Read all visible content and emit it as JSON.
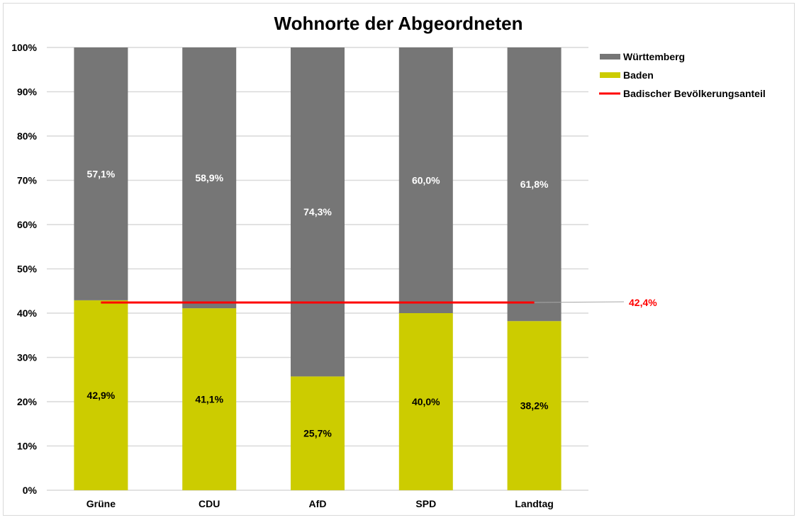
{
  "chart_data": {
    "type": "bar",
    "stacked": true,
    "title": "Wohnorte der Abgeordneten",
    "xlabel": "",
    "ylabel": "",
    "ylim": [
      0,
      100
    ],
    "yticks": [
      "0%",
      "10%",
      "20%",
      "30%",
      "40%",
      "50%",
      "60%",
      "70%",
      "80%",
      "90%",
      "100%"
    ],
    "grid": true,
    "legend_position": "right",
    "categories": [
      "Grüne",
      "CDU",
      "AfD",
      "SPD",
      "Landtag"
    ],
    "series": [
      {
        "name": "Baden",
        "color": "#cccc00",
        "values": [
          42.9,
          41.1,
          25.7,
          40.0,
          38.2
        ],
        "labels": [
          "42,9%",
          "41,1%",
          "25,7%",
          "40,0%",
          "38,2%"
        ],
        "label_color": "#000000"
      },
      {
        "name": "Württemberg",
        "color": "#767676",
        "values": [
          57.1,
          58.9,
          74.3,
          60.0,
          61.8
        ],
        "labels": [
          "57,1%",
          "58,9%",
          "74,3%",
          "60,0%",
          "61,8%"
        ],
        "label_color": "#ffffff"
      }
    ],
    "reference_line": {
      "name": "Badischer Bevölkerungsanteil",
      "value": 42.4,
      "label": "42,4%",
      "color": "#ff0000"
    },
    "legend": [
      "Württemberg",
      "Baden",
      "Badischer Bevölkerungsanteil"
    ]
  }
}
